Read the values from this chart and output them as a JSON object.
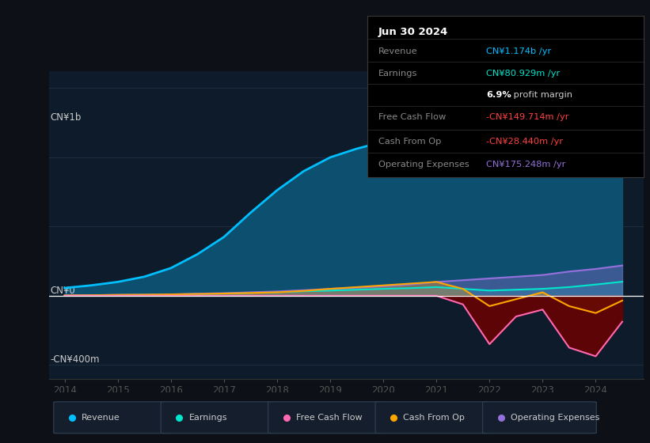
{
  "bg_color": "#0d1117",
  "chart_bg": "#0d1b2a",
  "ylabel_top": "CN¥1b",
  "ylabel_zero": "CN¥0",
  "ylabel_bottom": "-CN¥400m",
  "years": [
    2014.0,
    2014.5,
    2015.0,
    2015.5,
    2016.0,
    2016.5,
    2017.0,
    2017.5,
    2018.0,
    2018.5,
    2019.0,
    2019.5,
    2020.0,
    2020.5,
    2021.0,
    2021.5,
    2022.0,
    2022.5,
    2023.0,
    2023.5,
    2024.0,
    2024.5
  ],
  "revenue": [
    45,
    60,
    80,
    110,
    160,
    240,
    340,
    480,
    610,
    720,
    800,
    850,
    890,
    930,
    950,
    870,
    700,
    690,
    720,
    800,
    950,
    1174
  ],
  "earnings": [
    2,
    3,
    4,
    5,
    7,
    10,
    13,
    17,
    21,
    26,
    30,
    35,
    40,
    44,
    50,
    40,
    30,
    35,
    40,
    50,
    65,
    81
  ],
  "free_cash_flow": [
    0,
    0,
    0,
    0,
    0,
    0,
    0,
    0,
    0,
    0,
    0,
    0,
    0,
    0,
    0,
    -50,
    -280,
    -120,
    -80,
    -300,
    -350,
    -150
  ],
  "cash_from_op": [
    2,
    3,
    5,
    6,
    8,
    10,
    13,
    16,
    20,
    28,
    40,
    50,
    60,
    70,
    80,
    40,
    -60,
    -20,
    20,
    -60,
    -100,
    -28
  ],
  "operating_exp": [
    2,
    3,
    5,
    6,
    8,
    12,
    15,
    20,
    25,
    32,
    40,
    47,
    55,
    65,
    80,
    90,
    100,
    110,
    120,
    140,
    155,
    175
  ],
  "revenue_color": "#00bfff",
  "earnings_color": "#00e5cc",
  "fcf_color": "#ff69b4",
  "cashfromop_color": "#ffa500",
  "opex_color": "#9370db",
  "revenue_fill": "#0d4f6e",
  "ylim_top": 1300,
  "ylim_bottom": -480,
  "xmin": 2013.7,
  "xmax": 2024.9,
  "tooltip_title": "Jun 30 2024",
  "tooltip_rows": [
    {
      "label": "Revenue",
      "value": "CN¥1.174b /yr",
      "color": "#00bfff"
    },
    {
      "label": "Earnings",
      "value": "CN¥80.929m /yr",
      "color": "#00e5cc"
    },
    {
      "label": "",
      "value": "6.9% profit margin",
      "color": "#cccccc"
    },
    {
      "label": "Free Cash Flow",
      "value": "-CN¥149.714m /yr",
      "color": "#ff4040"
    },
    {
      "label": "Cash From Op",
      "value": "-CN¥28.440m /yr",
      "color": "#ff4040"
    },
    {
      "label": "Operating Expenses",
      "value": "CN¥175.248m /yr",
      "color": "#9370db"
    }
  ],
  "legend_items": [
    {
      "label": "Revenue",
      "color": "#00bfff"
    },
    {
      "label": "Earnings",
      "color": "#00e5cc"
    },
    {
      "label": "Free Cash Flow",
      "color": "#ff69b4"
    },
    {
      "label": "Cash From Op",
      "color": "#ffa500"
    },
    {
      "label": "Operating Expenses",
      "color": "#9370db"
    }
  ]
}
